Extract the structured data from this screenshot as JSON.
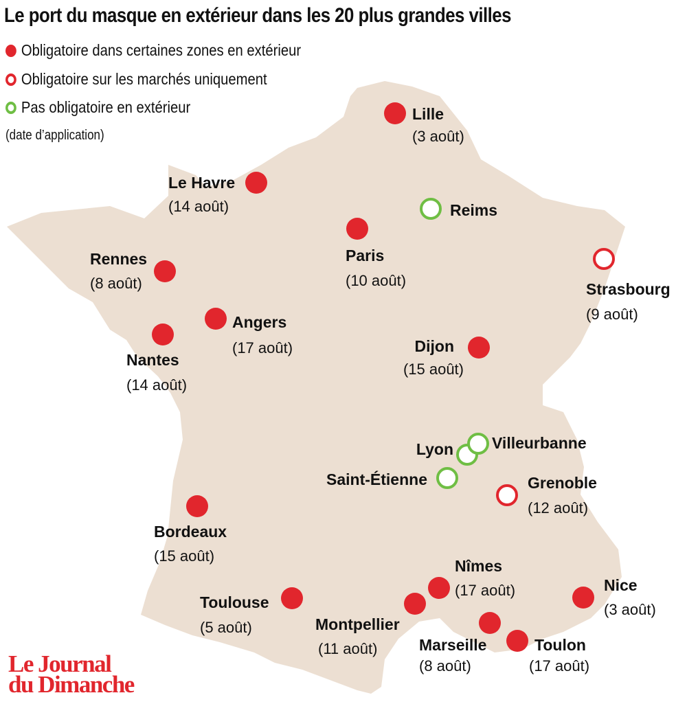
{
  "title": "Le port du masque en extérieur dans les 20 plus grandes villes",
  "legend": {
    "items": [
      {
        "label": "Obligatoire dans certaines zones en extérieur",
        "marker": "filled-red-dot",
        "color": "#e1262d"
      },
      {
        "label": "Obligatoire sur les marchés uniquement",
        "marker": "red-ring",
        "color": "#e1262d"
      },
      {
        "label": "Pas obligatoire en extérieur",
        "marker": "green-ring",
        "color": "#6fbe44"
      }
    ],
    "note": "(date d’application)"
  },
  "colors": {
    "land": "#ecdfd2",
    "mandatory": "#e1262d",
    "markets_only": "#e1262d",
    "not_mandatory": "#6fbe44"
  },
  "cities": [
    {
      "name": "Lille",
      "date": "(3 août)",
      "status": "mandatory"
    },
    {
      "name": "Le Havre",
      "date": "(14 août)",
      "status": "mandatory"
    },
    {
      "name": "Reims",
      "date": "",
      "status": "not_mandatory"
    },
    {
      "name": "Paris",
      "date": "(10 août)",
      "status": "mandatory"
    },
    {
      "name": "Rennes",
      "date": "(8 août)",
      "status": "mandatory"
    },
    {
      "name": "Strasbourg",
      "date": "(9 août)",
      "status": "markets_only"
    },
    {
      "name": "Angers",
      "date": "(17 août)",
      "status": "mandatory"
    },
    {
      "name": "Nantes",
      "date": "(14 août)",
      "status": "mandatory"
    },
    {
      "name": "Dijon",
      "date": "(15 août)",
      "status": "mandatory"
    },
    {
      "name": "Lyon",
      "date": "",
      "status": "not_mandatory"
    },
    {
      "name": "Villeurbanne",
      "date": "",
      "status": "not_mandatory"
    },
    {
      "name": "Saint-Étienne",
      "date": "",
      "status": "not_mandatory"
    },
    {
      "name": "Grenoble",
      "date": "(12 août)",
      "status": "markets_only"
    },
    {
      "name": "Bordeaux",
      "date": "(15 août)",
      "status": "mandatory"
    },
    {
      "name": "Nîmes",
      "date": "(17 août)",
      "status": "mandatory"
    },
    {
      "name": "Nice",
      "date": "(3 août)",
      "status": "mandatory"
    },
    {
      "name": "Toulouse",
      "date": "(5 août)",
      "status": "mandatory"
    },
    {
      "name": "Montpellier",
      "date": "(11 août)",
      "status": "mandatory"
    },
    {
      "name": "Marseille",
      "date": "(8 août)",
      "status": "mandatory"
    },
    {
      "name": "Toulon",
      "date": "(17 août)",
      "status": "mandatory"
    }
  ],
  "logo": {
    "line1": "Le Journal",
    "line2": "du Dimanche"
  }
}
